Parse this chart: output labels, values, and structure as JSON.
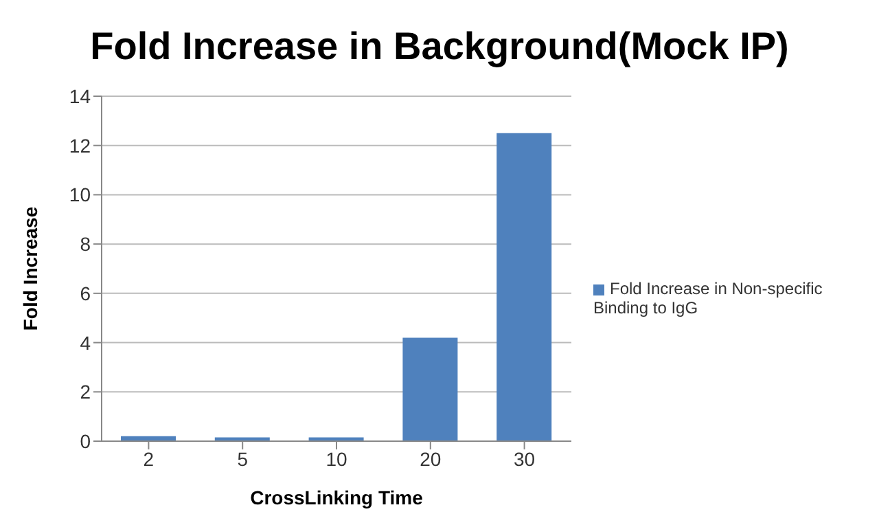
{
  "chart_data": {
    "type": "bar",
    "title": "Fold Increase in Background(Mock IP)",
    "xlabel": "CrossLinking Time",
    "ylabel": "Fold Increase",
    "categories": [
      "2",
      "5",
      "10",
      "20",
      "30"
    ],
    "series": [
      {
        "name": "Fold Increase in Non-specific Binding to IgG",
        "color": "#4f81bd",
        "values": [
          0.2,
          0.15,
          0.15,
          4.2,
          12.5
        ]
      }
    ],
    "ylim": [
      0,
      14
    ],
    "yticks": [
      0,
      2,
      4,
      6,
      8,
      10,
      12,
      14
    ],
    "grid": "y",
    "legend": "right"
  }
}
